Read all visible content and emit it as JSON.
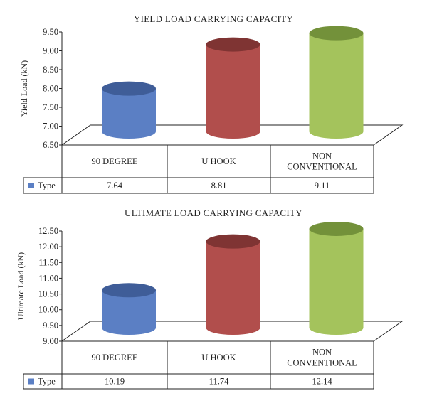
{
  "colors": {
    "series": [
      "#5b7fc4",
      "#b14e4c",
      "#a4c35c"
    ],
    "tops": [
      "#3f5d98",
      "#7f3433",
      "#73913a"
    ],
    "legend_swatch": "#5b7fc4",
    "axis": "#222222"
  },
  "chart_data": [
    {
      "type": "bar",
      "bar_shape": "cylinder-3d",
      "title": "YIELD LOAD CARRYING CAPACITY",
      "xlabel": "",
      "ylabel": "Yield Load (kN)",
      "ylim": [
        6.5,
        9.5
      ],
      "yticks": [
        "6.50",
        "7.00",
        "7.50",
        "8.00",
        "8.50",
        "9.00",
        "9.50"
      ],
      "categories": [
        [
          "90 DEGREE"
        ],
        [
          "U HOOK"
        ],
        [
          "NON",
          "CONVENTIONAL"
        ]
      ],
      "series": [
        {
          "name": "Type",
          "values": [
            7.64,
            8.81,
            9.11
          ],
          "labels": [
            "7.64",
            "8.81",
            "9.11"
          ]
        }
      ],
      "data_table": true,
      "grid": false
    },
    {
      "type": "bar",
      "bar_shape": "cylinder-3d",
      "title": "ULTIMATE LOAD CARRYING CAPACITY",
      "xlabel": "",
      "ylabel": "Ultimate Load (kN)",
      "ylim": [
        9.0,
        12.5
      ],
      "yticks": [
        "9.00",
        "9.50",
        "10.00",
        "10.50",
        "11.00",
        "11.50",
        "12.00",
        "12.50"
      ],
      "categories": [
        [
          "90 DEGREE"
        ],
        [
          "U HOOK"
        ],
        [
          "NON",
          "CONVENTIONAL"
        ]
      ],
      "series": [
        {
          "name": "Type",
          "values": [
            10.19,
            11.74,
            12.14
          ],
          "labels": [
            "10.19",
            "11.74",
            "12.14"
          ]
        }
      ],
      "data_table": true,
      "grid": false
    }
  ]
}
